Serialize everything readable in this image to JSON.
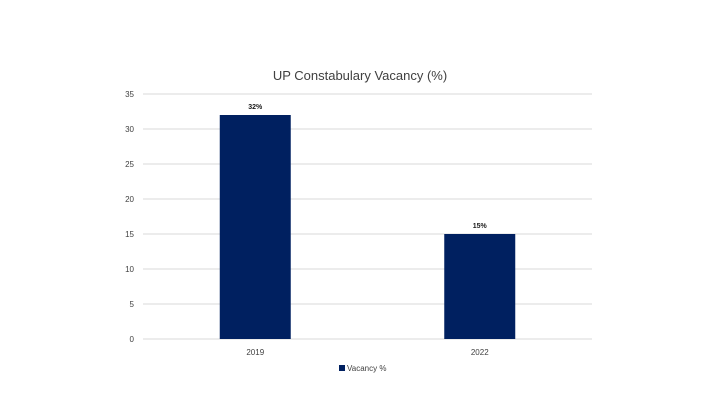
{
  "chart_data": {
    "type": "bar",
    "title": "UP Constabulary Vacancy (%)",
    "xlabel": "",
    "ylabel": "",
    "categories": [
      "2019",
      "2022"
    ],
    "series": [
      {
        "name": "Vacancy %",
        "values": [
          32,
          15
        ],
        "data_labels": [
          "32%",
          "15%"
        ],
        "color": "#002060"
      }
    ],
    "ylim": [
      0,
      35
    ],
    "y_ticks": [
      0,
      5,
      10,
      15,
      20,
      25,
      30,
      35
    ],
    "grid": true,
    "legend_position": "bottom"
  }
}
